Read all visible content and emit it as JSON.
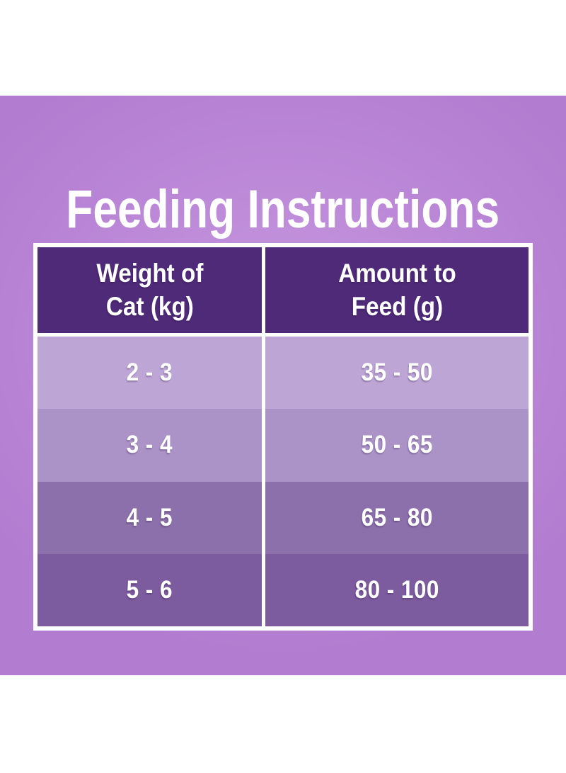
{
  "title": "Feeding Instructions",
  "table": {
    "columns": [
      {
        "line1": "Weight of",
        "line2": "Cat (kg)"
      },
      {
        "line1": "Amount to",
        "line2": "Feed (g)"
      }
    ],
    "rows": [
      {
        "weight": "2 - 3",
        "amount": "35 - 50"
      },
      {
        "weight": "3 - 4",
        "amount": "50 - 65"
      },
      {
        "weight": "4 - 5",
        "amount": "65 - 80"
      },
      {
        "weight": "5 - 6",
        "amount": "80 - 100"
      }
    ]
  },
  "colors": {
    "header_bg": "#4e2a78",
    "row_shades": [
      "#bda6d5",
      "#ab93c7",
      "#8c70ab",
      "#7c5b9f"
    ],
    "panel_purple": "#b77fd4",
    "text": "#ffffff",
    "page_bg": "#ffffff"
  },
  "chart_data": {
    "type": "table",
    "title": "Feeding Instructions",
    "columns": [
      "Weight of Cat (kg)",
      "Amount to Feed (g)"
    ],
    "rows": [
      [
        "2 - 3",
        "35 - 50"
      ],
      [
        "3 - 4",
        "50 - 65"
      ],
      [
        "4 - 5",
        "65 - 80"
      ],
      [
        "5 - 6",
        "80 - 100"
      ]
    ],
    "notes": "Feeding guide table: cat weight ranges in kg mapped to daily food amount ranges in grams; row shading darkens with increasing weight."
  }
}
